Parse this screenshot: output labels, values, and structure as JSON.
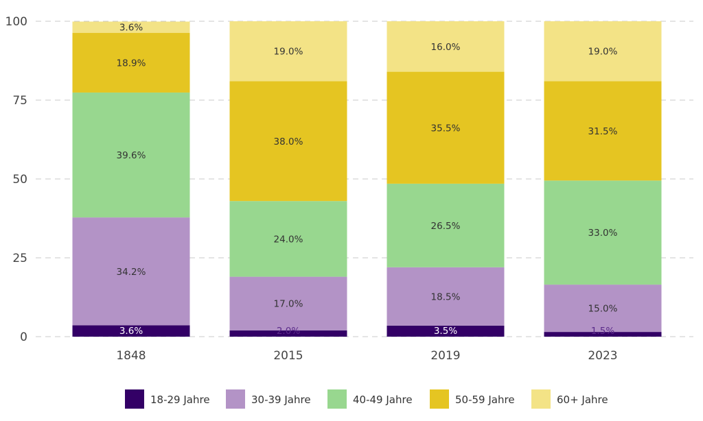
{
  "chart_data": {
    "type": "bar",
    "stacked": true,
    "categories": [
      "1848",
      "2015",
      "2019",
      "2023"
    ],
    "ylim": [
      0,
      100
    ],
    "yticks": [
      "0",
      "25",
      "50",
      "75",
      "100"
    ],
    "grid": true,
    "legend_position": "bottom",
    "series": [
      {
        "name": "18-29 Jahre",
        "color": "#330066",
        "values": [
          3.6,
          2.0,
          3.5,
          1.5
        ],
        "labels": [
          "3.6%",
          "2.0%",
          "3.5%",
          "1.5%"
        ]
      },
      {
        "name": "30-39 Jahre",
        "color": "#b393c6",
        "values": [
          34.2,
          17.0,
          18.5,
          15.0
        ],
        "labels": [
          "34.2%",
          "17.0%",
          "18.5%",
          "15.0%"
        ]
      },
      {
        "name": "40-49 Jahre",
        "color": "#98d78f",
        "values": [
          39.6,
          24.0,
          26.5,
          33.0
        ],
        "labels": [
          "39.6%",
          "24.0%",
          "26.5%",
          "33.0%"
        ]
      },
      {
        "name": "50-59 Jahre",
        "color": "#e5c522",
        "values": [
          18.9,
          38.0,
          35.5,
          31.5
        ],
        "labels": [
          "18.9%",
          "38.0%",
          "35.5%",
          "31.5%"
        ]
      },
      {
        "name": "60+ Jahre",
        "color": "#f3e386",
        "values": [
          3.6,
          19.0,
          16.0,
          19.0
        ],
        "labels": [
          "3.6%",
          "19.0%",
          "16.0%",
          "19.0%"
        ]
      }
    ]
  }
}
